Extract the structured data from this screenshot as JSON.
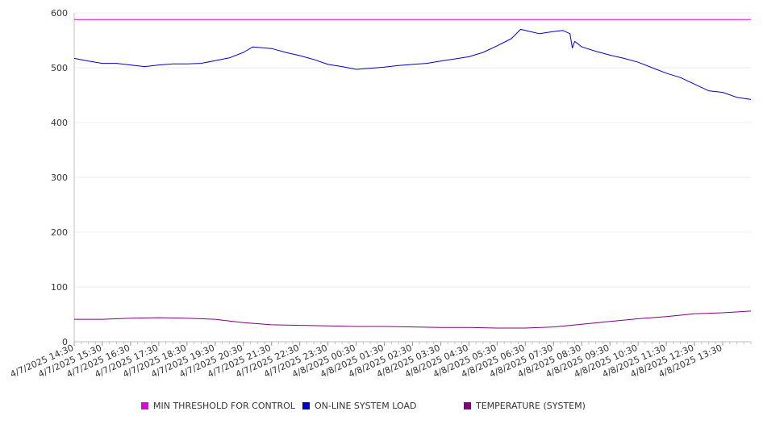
{
  "chart_data": {
    "type": "line",
    "title": "",
    "xlabel": "",
    "ylabel": "",
    "ylim": [
      0,
      600
    ],
    "yticks": [
      0,
      100,
      200,
      300,
      400,
      500,
      600
    ],
    "grid": true,
    "legend_position": "bottom",
    "x_tick_labels": [
      "4/7/2025 14:30",
      "4/7/2025 15:30",
      "4/7/2025 16:30",
      "4/7/2025 17:30",
      "4/7/2025 18:30",
      "4/7/2025 19:30",
      "4/7/2025 20:30",
      "4/7/2025 21:30",
      "4/7/2025 22:30",
      "4/7/2025 23:30",
      "4/8/2025 00:30",
      "4/8/2025 01:30",
      "4/8/2025 02:30",
      "4/8/2025 03:30",
      "4/8/2025 04:30",
      "4/8/2025 05:30",
      "4/8/2025 06:30",
      "4/8/2025 07:30",
      "4/8/2025 08:30",
      "4/8/2025 09:30",
      "4/8/2025 10:30",
      "4/8/2025 11:30",
      "4/8/2025 12:30",
      "4/8/2025 13:30"
    ],
    "x_start": "4/7/2025 14:30",
    "x_end": "4/8/2025 14:30",
    "series": [
      {
        "name": "MIN THRESHOLD FOR CONTROL",
        "color": "#e000e0",
        "points": [
          [
            "4/7/2025 14:30",
            588
          ],
          [
            "4/8/2025 14:30",
            588
          ]
        ]
      },
      {
        "name": "ON-LINE SYSTEM LOAD",
        "color": "#0000cc",
        "points": [
          [
            "4/7/2025 14:30",
            517
          ],
          [
            "4/7/2025 15:00",
            512
          ],
          [
            "4/7/2025 15:30",
            508
          ],
          [
            "4/7/2025 16:00",
            508
          ],
          [
            "4/7/2025 16:30",
            505
          ],
          [
            "4/7/2025 17:00",
            502
          ],
          [
            "4/7/2025 17:30",
            505
          ],
          [
            "4/7/2025 18:00",
            507
          ],
          [
            "4/7/2025 18:30",
            507
          ],
          [
            "4/7/2025 19:00",
            508
          ],
          [
            "4/7/2025 19:30",
            513
          ],
          [
            "4/7/2025 20:00",
            518
          ],
          [
            "4/7/2025 20:30",
            528
          ],
          [
            "4/7/2025 20:50",
            538
          ],
          [
            "4/7/2025 21:30",
            535
          ],
          [
            "4/7/2025 22:00",
            528
          ],
          [
            "4/7/2025 22:30",
            522
          ],
          [
            "4/7/2025 23:00",
            515
          ],
          [
            "4/7/2025 23:30",
            506
          ],
          [
            "4/8/2025 00:00",
            502
          ],
          [
            "4/8/2025 00:30",
            497
          ],
          [
            "4/8/2025 01:00",
            499
          ],
          [
            "4/8/2025 01:30",
            501
          ],
          [
            "4/8/2025 02:00",
            504
          ],
          [
            "4/8/2025 02:30",
            506
          ],
          [
            "4/8/2025 03:00",
            508
          ],
          [
            "4/8/2025 03:30",
            512
          ],
          [
            "4/8/2025 04:00",
            516
          ],
          [
            "4/8/2025 04:30",
            520
          ],
          [
            "4/8/2025 05:00",
            528
          ],
          [
            "4/8/2025 05:30",
            540
          ],
          [
            "4/8/2025 06:00",
            553
          ],
          [
            "4/8/2025 06:20",
            570
          ],
          [
            "4/8/2025 06:40",
            566
          ],
          [
            "4/8/2025 07:00",
            562
          ],
          [
            "4/8/2025 07:30",
            566
          ],
          [
            "4/8/2025 07:50",
            568
          ],
          [
            "4/8/2025 08:05",
            562
          ],
          [
            "4/8/2025 08:10",
            536
          ],
          [
            "4/8/2025 08:15",
            548
          ],
          [
            "4/8/2025 08:30",
            538
          ],
          [
            "4/8/2025 09:00",
            530
          ],
          [
            "4/8/2025 09:30",
            523
          ],
          [
            "4/8/2025 10:00",
            517
          ],
          [
            "4/8/2025 10:30",
            510
          ],
          [
            "4/8/2025 11:00",
            500
          ],
          [
            "4/8/2025 11:30",
            490
          ],
          [
            "4/8/2025 12:00",
            482
          ],
          [
            "4/8/2025 12:30",
            470
          ],
          [
            "4/8/2025 13:00",
            458
          ],
          [
            "4/8/2025 13:30",
            455
          ],
          [
            "4/8/2025 14:00",
            446
          ],
          [
            "4/8/2025 14:30",
            442
          ]
        ]
      },
      {
        "name": "TEMPERATURE (SYSTEM)",
        "color": "#800080",
        "points": [
          [
            "4/7/2025 14:30",
            41
          ],
          [
            "4/7/2025 15:30",
            41
          ],
          [
            "4/7/2025 16:30",
            43
          ],
          [
            "4/7/2025 17:30",
            44
          ],
          [
            "4/7/2025 18:30",
            43
          ],
          [
            "4/7/2025 19:30",
            41
          ],
          [
            "4/7/2025 20:30",
            35
          ],
          [
            "4/7/2025 21:30",
            31
          ],
          [
            "4/7/2025 22:30",
            30
          ],
          [
            "4/7/2025 23:30",
            29
          ],
          [
            "4/8/2025 00:30",
            28
          ],
          [
            "4/8/2025 01:30",
            28
          ],
          [
            "4/8/2025 02:30",
            27
          ],
          [
            "4/8/2025 03:30",
            26
          ],
          [
            "4/8/2025 04:30",
            26
          ],
          [
            "4/8/2025 05:30",
            25
          ],
          [
            "4/8/2025 06:30",
            25
          ],
          [
            "4/8/2025 07:30",
            27
          ],
          [
            "4/8/2025 08:30",
            32
          ],
          [
            "4/8/2025 09:30",
            37
          ],
          [
            "4/8/2025 10:30",
            42
          ],
          [
            "4/8/2025 11:30",
            46
          ],
          [
            "4/8/2025 12:30",
            51
          ],
          [
            "4/8/2025 13:30",
            53
          ],
          [
            "4/8/2025 14:30",
            56
          ]
        ]
      }
    ]
  }
}
